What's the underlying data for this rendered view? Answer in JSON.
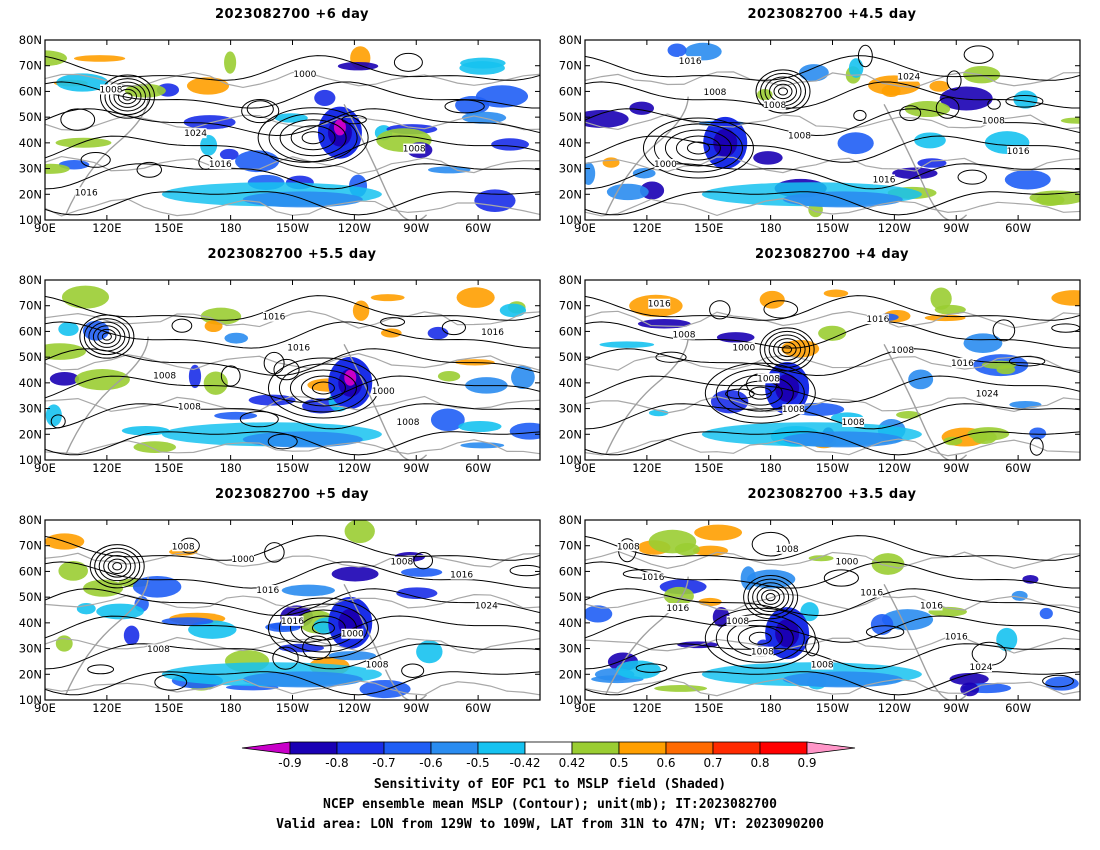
{
  "panels": [
    {
      "title": "2023082700  +6 day",
      "hi_lon": 245,
      "hi_lat": 42,
      "low_lon": 130,
      "low_lat": 58,
      "contour_labels": [
        "1016",
        "1024",
        "1000",
        "1008",
        "1008",
        "1016"
      ]
    },
    {
      "title": "2023082700  +4.5 day",
      "hi_lon": 170,
      "hi_lat": 38,
      "low_lon": 186,
      "low_lat": 60,
      "contour_labels": [
        "1000",
        "1008",
        "1016",
        "1008",
        "1016",
        "1008",
        "1024",
        "1016",
        "1008"
      ]
    },
    {
      "title": "2023082700  +5.5 day",
      "hi_lon": 250,
      "hi_lat": 38,
      "low_lon": 120,
      "low_lat": 58,
      "contour_labels": [
        "1008",
        "1016",
        "1000",
        "1016",
        "1008",
        "1016",
        "1008"
      ]
    },
    {
      "title": "2023082700  +4 day",
      "hi_lon": 200,
      "hi_lat": 36,
      "low_lon": 188,
      "low_lat": 53,
      "contour_labels": [
        "1000",
        "1008",
        "1016",
        "1016",
        "1008",
        "1016",
        "1024",
        "1008",
        "1008",
        "1008"
      ]
    },
    {
      "title": "2023082700  +5 day",
      "hi_lon": 250,
      "hi_lat": 38,
      "low_lon": 125,
      "low_lat": 62,
      "contour_labels": [
        "1000",
        "1000",
        "1016",
        "1008",
        "1016",
        "1008",
        "1024",
        "1008",
        "1016",
        "1008"
      ]
    },
    {
      "title": "2023082700  +3.5 day",
      "hi_lon": 200,
      "hi_lat": 34,
      "low_lon": 180,
      "low_lat": 50,
      "contour_labels": [
        "1008",
        "1016",
        "1008",
        "1008",
        "1000",
        "1016",
        "1016",
        "1008",
        "1016",
        "1024",
        "1016",
        "1008"
      ]
    }
  ],
  "axes": {
    "lat_labels": [
      "10N",
      "20N",
      "30N",
      "40N",
      "50N",
      "60N",
      "70N",
      "80N"
    ],
    "lat_values": [
      10,
      20,
      30,
      40,
      50,
      60,
      70,
      80
    ],
    "lon_labels": [
      "90E",
      "120E",
      "150E",
      "180",
      "150W",
      "120W",
      "90W",
      "60W"
    ],
    "lon_values": [
      90,
      120,
      150,
      180,
      210,
      240,
      270,
      300
    ],
    "lon_range": [
      90,
      330
    ],
    "lat_range": [
      10,
      80
    ]
  },
  "colorbar": {
    "labels": [
      "-0.9",
      "-0.8",
      "-0.7",
      "-0.6",
      "-0.5",
      "-0.42",
      "0.42",
      "0.5",
      "0.6",
      "0.7",
      "0.8",
      "0.9"
    ],
    "colors": [
      "#1a00b4",
      "#1a2ee8",
      "#1f5ef5",
      "#2a8cf0",
      "#16c2f0",
      "#ffffff",
      "#9acd32",
      "#ff9f00",
      "#ff6a00",
      "#ff2a00",
      "#ff0000"
    ],
    "under_color": "#c800c8",
    "over_color": "#ff96c8"
  },
  "caption": {
    "line1": "Sensitivity of EOF PC1 to MSLP field (Shaded)",
    "line2": "NCEP ensemble mean MSLP (Contour); unit(mb); IT:2023082700",
    "line3": "Valid area: LON from 129W to 109W, LAT from 31N to 47N; VT: 2023090200"
  }
}
